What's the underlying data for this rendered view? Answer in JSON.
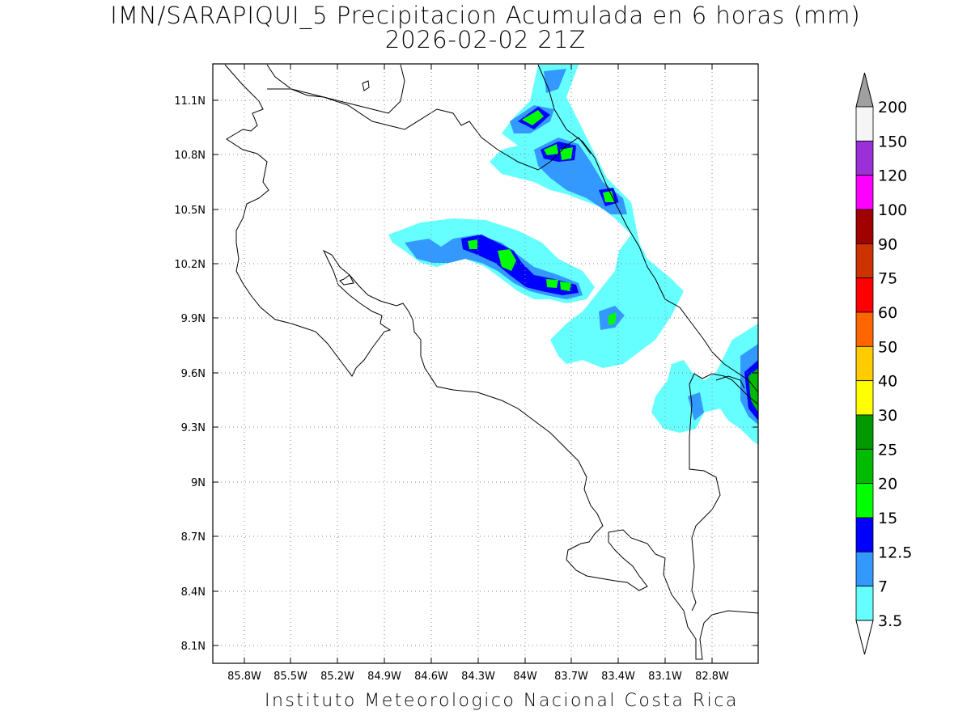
{
  "title": {
    "line1": "IMN/SARAPIQUI_5 Precipitacion Acumulada en 6 horas (mm)",
    "line2": "2026-02-02 21Z"
  },
  "footer": "Instituto Meteorologico Nacional Costa Rica",
  "axes": {
    "lat_ticks": [
      "11.1N",
      "10.8N",
      "10.5N",
      "10.2N",
      "9.9N",
      "9.6N",
      "9.3N",
      "9N",
      "8.7N",
      "8.4N",
      "8.1N"
    ],
    "lon_ticks": [
      "85.8W",
      "85.5W",
      "85.2W",
      "84.9W",
      "84.6W",
      "84.3W",
      "84W",
      "83.7W",
      "83.4W",
      "83.1W",
      "82.8W"
    ],
    "grid": true
  },
  "colorbar": {
    "labels": [
      "200",
      "150",
      "120",
      "100",
      "90",
      "75",
      "60",
      "50",
      "40",
      "30",
      "25",
      "20",
      "15",
      "12.5",
      "7",
      "3.5"
    ],
    "colors": [
      "#f5f5f5",
      "#9b30d8",
      "#ff00ff",
      "#a00000",
      "#cc3300",
      "#ff0000",
      "#ff6600",
      "#ffcc00",
      "#ffff00",
      "#009900",
      "#00bb00",
      "#00ff00",
      "#0000ff",
      "#3399ff",
      "#66ffff"
    ],
    "over_color": "#a0a0a0",
    "under_color": "#ffffff"
  }
}
